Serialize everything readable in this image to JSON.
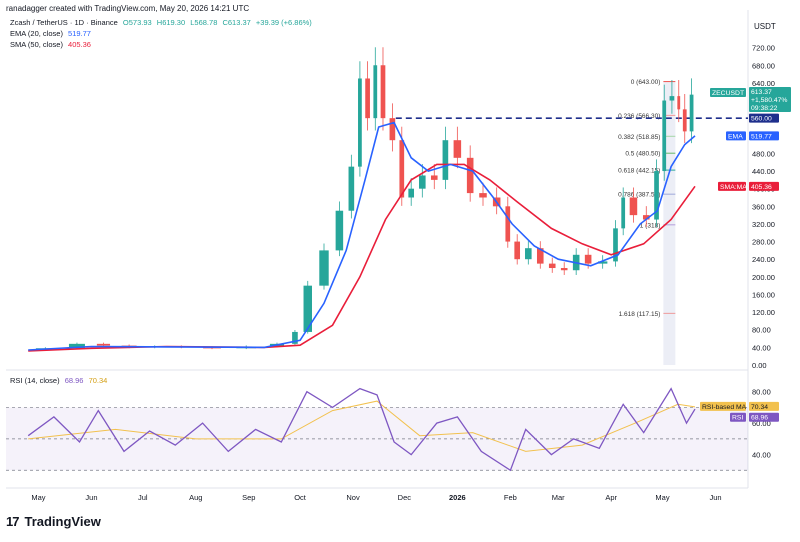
{
  "header": {
    "author_line": "ranadagger created with TradingView.com, May 20, 2026 14:21 UTC"
  },
  "legend": {
    "symbol": "Zcash / TetherUS · 1D · Binance",
    "open": "O573.93",
    "high": "H619.30",
    "low": "L568.78",
    "close": "C613.37",
    "change": "+39.39 (+6.86%)",
    "ema_label": "EMA (20, close)",
    "ema_value": "519.77",
    "sma_label": "SMA (50, close)",
    "sma_value": "405.36",
    "rsi_label": "RSI (14, close)",
    "rsi_value": "68.96",
    "rsi_ma_value": "70.34"
  },
  "axis": {
    "unit": "USDT"
  },
  "price_tags": {
    "symbol": "ZECUSDT",
    "last": "613.37",
    "change_pct": "+1,580.47%",
    "countdown": "09:38:22",
    "level": "560.00",
    "ema_tag": "EMA",
    "ema": "519.77",
    "sma_tag": "SMA:MA",
    "sma": "405.36"
  },
  "rsi_tags": {
    "ma_tag": "RSI-based MA",
    "ma": "70.34",
    "rsi_tag": "RSI",
    "rsi": "68.96"
  },
  "branding": {
    "logo_mark": "17",
    "logo_text": "TradingView"
  },
  "colors": {
    "up": "#26a69a",
    "down": "#ef5350",
    "ema": "#2962ff",
    "sma": "#e91e3a",
    "rsi": "#7e57c2",
    "rsi_ma": "#f2c14e",
    "horizontal_line": "#1e2f8c"
  },
  "chart_data": {
    "type": "candlestick",
    "price_axis": {
      "ticks": [
        "720.00",
        "680.00",
        "640.00",
        "600.00",
        "560.00",
        "520.00",
        "480.00",
        "440.00",
        "400.00",
        "360.00",
        "320.00",
        "280.00",
        "240.00",
        "200.00",
        "160.00",
        "120.00",
        "80.00",
        "40.00",
        "0.00"
      ],
      "ylim": [
        0,
        760
      ]
    },
    "time_axis": {
      "ticks": [
        "May",
        "Jun",
        "Jul",
        "Aug",
        "Sep",
        "Oct",
        "Nov",
        "Dec",
        "2026",
        "Feb",
        "Mar",
        "Apr",
        "May",
        "Jun"
      ]
    },
    "fibonacci": {
      "levels": [
        {
          "label": "0 (643.00)",
          "value": 643.0
        },
        {
          "label": "0.236 (566.30)",
          "value": 566.3
        },
        {
          "label": "0.382 (518.85)",
          "value": 518.85
        },
        {
          "label": "0.5 (480.50)",
          "value": 480.5
        },
        {
          "label": "0.618 (442.15)",
          "value": 442.15
        },
        {
          "label": "0.786 (387.55)",
          "value": 387.55
        },
        {
          "label": "1 (318)",
          "value": 318
        },
        {
          "label": "1.618 (117.15)",
          "value": 117.15
        }
      ]
    },
    "horizontal_line": 560.0,
    "close_series": [
      {
        "date": "2025-04-25",
        "close": 36
      },
      {
        "date": "2025-05-15",
        "close": 38
      },
      {
        "date": "2025-06-01",
        "close": 48
      },
      {
        "date": "2025-06-15",
        "close": 44
      },
      {
        "date": "2025-07-01",
        "close": 40
      },
      {
        "date": "2025-07-15",
        "close": 42
      },
      {
        "date": "2025-08-01",
        "close": 40
      },
      {
        "date": "2025-08-20",
        "close": 38
      },
      {
        "date": "2025-09-10",
        "close": 42
      },
      {
        "date": "2025-09-25",
        "close": 48
      },
      {
        "date": "2025-10-01",
        "close": 75
      },
      {
        "date": "2025-10-10",
        "close": 180
      },
      {
        "date": "2025-10-20",
        "close": 260
      },
      {
        "date": "2025-10-28",
        "close": 350
      },
      {
        "date": "2025-11-03",
        "close": 450
      },
      {
        "date": "2025-11-07",
        "close": 650
      },
      {
        "date": "2025-11-12",
        "close": 560
      },
      {
        "date": "2025-11-16",
        "close": 680
      },
      {
        "date": "2025-11-21",
        "close": 560
      },
      {
        "date": "2025-11-27",
        "close": 510
      },
      {
        "date": "2025-12-02",
        "close": 380
      },
      {
        "date": "2025-12-08",
        "close": 400
      },
      {
        "date": "2025-12-15",
        "close": 430
      },
      {
        "date": "2025-12-22",
        "close": 420
      },
      {
        "date": "2025-12-28",
        "close": 510
      },
      {
        "date": "2026-01-05",
        "close": 470
      },
      {
        "date": "2026-01-12",
        "close": 390
      },
      {
        "date": "2026-01-20",
        "close": 380
      },
      {
        "date": "2026-01-28",
        "close": 360
      },
      {
        "date": "2026-02-02",
        "close": 280
      },
      {
        "date": "2026-02-08",
        "close": 240
      },
      {
        "date": "2026-02-15",
        "close": 265
      },
      {
        "date": "2026-02-22",
        "close": 230
      },
      {
        "date": "2026-03-01",
        "close": 220
      },
      {
        "date": "2026-03-08",
        "close": 215
      },
      {
        "date": "2026-03-15",
        "close": 250
      },
      {
        "date": "2026-03-22",
        "close": 230
      },
      {
        "date": "2026-04-01",
        "close": 235
      },
      {
        "date": "2026-04-06",
        "close": 310
      },
      {
        "date": "2026-04-10",
        "close": 380
      },
      {
        "date": "2026-04-18",
        "close": 340
      },
      {
        "date": "2026-04-25",
        "close": 330
      },
      {
        "date": "2026-04-30",
        "close": 440
      },
      {
        "date": "2026-05-04",
        "close": 600
      },
      {
        "date": "2026-05-09",
        "close": 610
      },
      {
        "date": "2026-05-12",
        "close": 580
      },
      {
        "date": "2026-05-16",
        "close": 530
      },
      {
        "date": "2026-05-20",
        "close": 613.37
      }
    ],
    "ema20_series": [
      {
        "date": "2025-04-25",
        "value": 34
      },
      {
        "date": "2025-06-01",
        "value": 42
      },
      {
        "date": "2025-07-15",
        "value": 41
      },
      {
        "date": "2025-09-10",
        "value": 40
      },
      {
        "date": "2025-10-01",
        "value": 56
      },
      {
        "date": "2025-10-15",
        "value": 140
      },
      {
        "date": "2025-10-28",
        "value": 260
      },
      {
        "date": "2025-11-08",
        "value": 420
      },
      {
        "date": "2025-11-16",
        "value": 540
      },
      {
        "date": "2025-11-25",
        "value": 550
      },
      {
        "date": "2025-12-05",
        "value": 470
      },
      {
        "date": "2025-12-15",
        "value": 440
      },
      {
        "date": "2025-12-28",
        "value": 455
      },
      {
        "date": "2026-01-10",
        "value": 440
      },
      {
        "date": "2026-01-22",
        "value": 380
      },
      {
        "date": "2026-02-02",
        "value": 320
      },
      {
        "date": "2026-02-15",
        "value": 270
      },
      {
        "date": "2026-03-01",
        "value": 240
      },
      {
        "date": "2026-03-20",
        "value": 225
      },
      {
        "date": "2026-04-05",
        "value": 250
      },
      {
        "date": "2026-04-18",
        "value": 320
      },
      {
        "date": "2026-04-28",
        "value": 350
      },
      {
        "date": "2026-05-06",
        "value": 450
      },
      {
        "date": "2026-05-14",
        "value": 500
      },
      {
        "date": "2026-05-20",
        "value": 519.77
      }
    ],
    "sma50_series": [
      {
        "date": "2025-04-25",
        "value": 32
      },
      {
        "date": "2025-06-01",
        "value": 38
      },
      {
        "date": "2025-07-15",
        "value": 42
      },
      {
        "date": "2025-09-10",
        "value": 40
      },
      {
        "date": "2025-10-01",
        "value": 45
      },
      {
        "date": "2025-10-20",
        "value": 90
      },
      {
        "date": "2025-11-05",
        "value": 200
      },
      {
        "date": "2025-11-20",
        "value": 330
      },
      {
        "date": "2025-12-05",
        "value": 420
      },
      {
        "date": "2025-12-20",
        "value": 455
      },
      {
        "date": "2026-01-05",
        "value": 455
      },
      {
        "date": "2026-01-20",
        "value": 420
      },
      {
        "date": "2026-02-05",
        "value": 370
      },
      {
        "date": "2026-02-25",
        "value": 310
      },
      {
        "date": "2026-03-15",
        "value": 275
      },
      {
        "date": "2026-04-01",
        "value": 250
      },
      {
        "date": "2026-04-20",
        "value": 275
      },
      {
        "date": "2026-05-06",
        "value": 330
      },
      {
        "date": "2026-05-20",
        "value": 405.36
      }
    ],
    "rsi_panel": {
      "ticks": [
        "80.00",
        "60.00",
        "40.00"
      ],
      "ylim": [
        20,
        90
      ],
      "bands": [
        30,
        50,
        70
      ],
      "rsi_series": [
        {
          "date": "2025-04-25",
          "value": 52
        },
        {
          "date": "2025-05-10",
          "value": 64
        },
        {
          "date": "2025-05-25",
          "value": 48
        },
        {
          "date": "2025-06-05",
          "value": 68
        },
        {
          "date": "2025-06-20",
          "value": 42
        },
        {
          "date": "2025-07-05",
          "value": 55
        },
        {
          "date": "2025-07-20",
          "value": 46
        },
        {
          "date": "2025-08-05",
          "value": 60
        },
        {
          "date": "2025-08-20",
          "value": 42
        },
        {
          "date": "2025-09-05",
          "value": 56
        },
        {
          "date": "2025-09-20",
          "value": 48
        },
        {
          "date": "2025-10-05",
          "value": 80
        },
        {
          "date": "2025-10-20",
          "value": 70
        },
        {
          "date": "2025-11-05",
          "value": 82
        },
        {
          "date": "2025-11-15",
          "value": 78
        },
        {
          "date": "2025-11-25",
          "value": 48
        },
        {
          "date": "2025-12-05",
          "value": 40
        },
        {
          "date": "2025-12-20",
          "value": 60
        },
        {
          "date": "2026-01-01",
          "value": 64
        },
        {
          "date": "2026-01-15",
          "value": 42
        },
        {
          "date": "2026-02-01",
          "value": 30
        },
        {
          "date": "2026-02-10",
          "value": 56
        },
        {
          "date": "2026-02-25",
          "value": 40
        },
        {
          "date": "2026-03-10",
          "value": 50
        },
        {
          "date": "2026-03-25",
          "value": 44
        },
        {
          "date": "2026-04-08",
          "value": 72
        },
        {
          "date": "2026-04-20",
          "value": 54
        },
        {
          "date": "2026-05-06",
          "value": 82
        },
        {
          "date": "2026-05-15",
          "value": 60
        },
        {
          "date": "2026-05-20",
          "value": 68.96
        }
      ],
      "rsi_ma_series": [
        {
          "date": "2025-04-25",
          "value": 50
        },
        {
          "date": "2025-06-15",
          "value": 56
        },
        {
          "date": "2025-08-01",
          "value": 50
        },
        {
          "date": "2025-09-20",
          "value": 50
        },
        {
          "date": "2025-10-20",
          "value": 68
        },
        {
          "date": "2025-11-15",
          "value": 74
        },
        {
          "date": "2025-12-10",
          "value": 52
        },
        {
          "date": "2026-01-10",
          "value": 54
        },
        {
          "date": "2026-02-10",
          "value": 42
        },
        {
          "date": "2026-03-15",
          "value": 46
        },
        {
          "date": "2026-04-15",
          "value": 60
        },
        {
          "date": "2026-05-10",
          "value": 72
        },
        {
          "date": "2026-05-20",
          "value": 70.34
        }
      ]
    }
  }
}
